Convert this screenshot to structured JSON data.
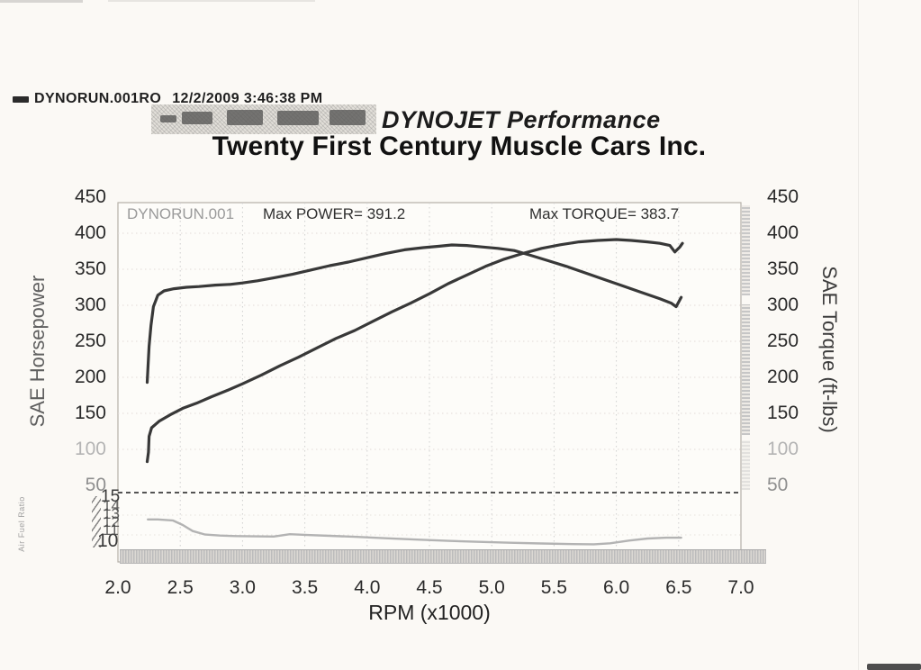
{
  "header": {
    "run_file": "DYNORUN.001RO",
    "timestamp": "12/2/2009 3:46:38 PM",
    "brand": "DYNOJET Performance",
    "title": "Twenty First Century Muscle Cars Inc."
  },
  "chart_data": {
    "type": "line",
    "title": "Twenty First Century Muscle Cars Inc.",
    "xlabel": "RPM (x1000)",
    "ylabel_left": "SAE Horsepower",
    "ylabel_right": "SAE Torque (ft-lbs)",
    "x_range": [
      2.0,
      7.0
    ],
    "x_ticks": [
      "2.0",
      "2.5",
      "3.0",
      "3.5",
      "4.0",
      "4.5",
      "5.0",
      "5.5",
      "6.0",
      "6.5",
      "7.0"
    ],
    "y_range": [
      50,
      450
    ],
    "y_ticks": [
      450,
      400,
      350,
      300,
      250,
      200,
      150,
      100,
      50
    ],
    "y_ticks_light": [
      100
    ],
    "y_ticks_semi": [
      50
    ],
    "grid": "dotted",
    "legend_position": "none",
    "max_power": 391.2,
    "max_torque": 383.7,
    "annotations": [
      {
        "text": "DYNORUN.001"
      },
      {
        "text": "Max POWER= 391.2"
      },
      {
        "text": "Max TORQUE= 383.7"
      }
    ],
    "series": [
      {
        "name": "SAE Horsepower",
        "axis": "main",
        "color": "#383838",
        "width": 3.2,
        "points": [
          [
            2.235,
            83
          ],
          [
            2.245,
            96
          ],
          [
            2.25,
            118
          ],
          [
            2.27,
            130
          ],
          [
            2.33,
            139
          ],
          [
            2.42,
            148
          ],
          [
            2.52,
            157
          ],
          [
            2.63,
            164
          ],
          [
            2.75,
            173
          ],
          [
            2.88,
            182
          ],
          [
            3.0,
            191
          ],
          [
            3.15,
            203
          ],
          [
            3.3,
            216
          ],
          [
            3.45,
            228
          ],
          [
            3.6,
            241
          ],
          [
            3.75,
            254
          ],
          [
            3.9,
            265
          ],
          [
            4.05,
            278
          ],
          [
            4.2,
            291
          ],
          [
            4.35,
            303
          ],
          [
            4.5,
            316
          ],
          [
            4.65,
            330
          ],
          [
            4.8,
            342
          ],
          [
            4.95,
            354
          ],
          [
            5.1,
            364
          ],
          [
            5.25,
            372
          ],
          [
            5.4,
            379
          ],
          [
            5.55,
            384
          ],
          [
            5.7,
            388
          ],
          [
            5.85,
            390
          ],
          [
            6.0,
            391.2
          ],
          [
            6.12,
            390
          ],
          [
            6.25,
            388
          ],
          [
            6.35,
            386
          ],
          [
            6.43,
            383
          ],
          [
            6.47,
            374
          ],
          [
            6.51,
            381
          ],
          [
            6.53,
            386
          ]
        ]
      },
      {
        "name": "SAE Torque",
        "axis": "main",
        "color": "#383838",
        "width": 3.2,
        "points": [
          [
            2.235,
            193
          ],
          [
            2.24,
            210
          ],
          [
            2.25,
            243
          ],
          [
            2.265,
            272
          ],
          [
            2.285,
            298
          ],
          [
            2.32,
            314
          ],
          [
            2.37,
            320
          ],
          [
            2.45,
            323
          ],
          [
            2.55,
            325
          ],
          [
            2.65,
            326
          ],
          [
            2.78,
            328
          ],
          [
            2.9,
            329
          ],
          [
            3.0,
            331
          ],
          [
            3.12,
            334
          ],
          [
            3.25,
            338
          ],
          [
            3.4,
            343
          ],
          [
            3.55,
            349
          ],
          [
            3.7,
            355
          ],
          [
            3.85,
            360
          ],
          [
            4.0,
            366
          ],
          [
            4.15,
            372
          ],
          [
            4.3,
            377
          ],
          [
            4.45,
            380
          ],
          [
            4.58,
            382
          ],
          [
            4.68,
            383.7
          ],
          [
            4.8,
            383
          ],
          [
            4.92,
            381
          ],
          [
            5.05,
            379
          ],
          [
            5.18,
            376
          ],
          [
            5.3,
            370
          ],
          [
            5.45,
            362
          ],
          [
            5.6,
            354
          ],
          [
            5.75,
            345
          ],
          [
            5.9,
            336
          ],
          [
            6.05,
            327
          ],
          [
            6.2,
            318
          ],
          [
            6.35,
            309
          ],
          [
            6.44,
            303
          ],
          [
            6.48,
            298
          ],
          [
            6.52,
            311
          ]
        ]
      },
      {
        "name": "Air/Fuel Ratio",
        "axis": "afr",
        "color": "#b3b3b3",
        "width": 2.4,
        "range": [
          10,
          16
        ],
        "points": [
          [
            2.24,
            13.15
          ],
          [
            2.32,
            13.15
          ],
          [
            2.44,
            13.05
          ],
          [
            2.52,
            12.6
          ],
          [
            2.6,
            12.0
          ],
          [
            2.7,
            11.65
          ],
          [
            2.82,
            11.55
          ],
          [
            2.95,
            11.5
          ],
          [
            3.1,
            11.47
          ],
          [
            3.25,
            11.45
          ],
          [
            3.38,
            11.68
          ],
          [
            3.52,
            11.6
          ],
          [
            3.7,
            11.52
          ],
          [
            3.9,
            11.42
          ],
          [
            4.15,
            11.28
          ],
          [
            4.4,
            11.15
          ],
          [
            4.65,
            11.02
          ],
          [
            4.9,
            10.92
          ],
          [
            5.15,
            10.83
          ],
          [
            5.4,
            10.76
          ],
          [
            5.65,
            10.7
          ],
          [
            5.82,
            10.68
          ],
          [
            5.95,
            10.78
          ],
          [
            6.1,
            11.05
          ],
          [
            6.25,
            11.25
          ],
          [
            6.4,
            11.33
          ],
          [
            6.52,
            11.33
          ]
        ]
      }
    ],
    "afr_panel": {
      "label": "Air Fuel Ratio",
      "tick_top": "15",
      "tick_bottom": "10",
      "tick_jumble": [
        "14",
        "13",
        "12",
        "11"
      ]
    }
  },
  "colors": {
    "paper": "#fbf9f5",
    "ink": "#1f1f1f",
    "curve": "#383838",
    "afr_curve": "#b3b3b3",
    "grid_vertical": "#cfcfcf",
    "grid_horizontal": "#e2dad8",
    "frame": "#b5b0a8",
    "divider": "#3d3d3d",
    "muted_tick": "#b4b4b4"
  }
}
